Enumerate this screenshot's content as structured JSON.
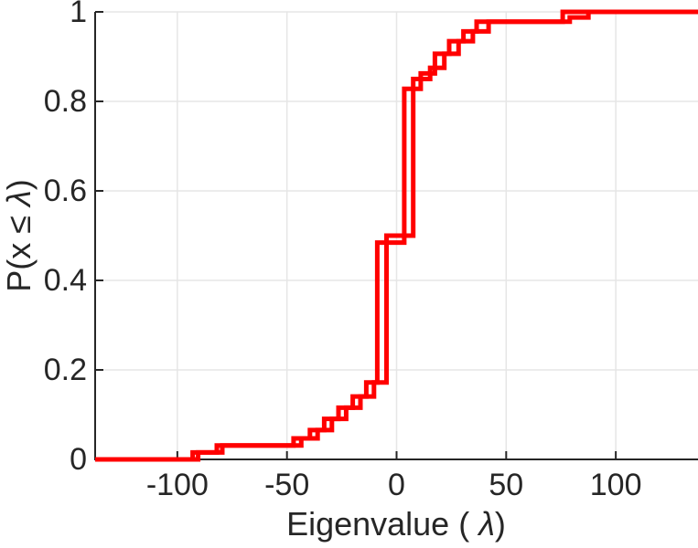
{
  "figure": {
    "background": "#ffffff"
  },
  "labels": {
    "xlabel": {
      "prefix": "Eigenvalue ( ",
      "lambda": "λ",
      "suffix": ")"
    },
    "ylabel": {
      "prefix": "P(x ≤ ",
      "lambda": "λ",
      "suffix": ")"
    }
  },
  "chart_data": {
    "type": "line",
    "subtype": "step-ecdf-stairs",
    "title": "",
    "xlabel": "Eigenvalue ( λ)",
    "ylabel": "P(x ≤ λ)",
    "xlim": [
      -137.5,
      137.5
    ],
    "ylim": [
      0,
      1
    ],
    "x_ticks": {
      "values": [
        -100,
        -50,
        0,
        50,
        100
      ],
      "labels": [
        "-100",
        "-50",
        "0",
        "50",
        "100"
      ]
    },
    "y_ticks": {
      "values": [
        0,
        0.2,
        0.4,
        0.6,
        0.8,
        1
      ],
      "labels": [
        "0",
        "0.2",
        "0.4",
        "0.6",
        "0.8",
        "1"
      ]
    },
    "grid": true,
    "legend": "none",
    "line_color": "#ff0000",
    "line_width": 5,
    "axis_color": "#262626",
    "grid_color": "#e6e6e6",
    "tick_length": 9,
    "series": [
      {
        "name": "eigenvalue-ecdf-1",
        "start_probability": 0,
        "jumps": [
          [
            -93,
            0.0156
          ],
          [
            -82,
            0.0313
          ],
          [
            -47,
            0.0469
          ],
          [
            -39.5,
            0.0656
          ],
          [
            -33,
            0.0906
          ],
          [
            -26.5,
            0.1156
          ],
          [
            -20,
            0.1406
          ],
          [
            -13.8,
            0.1719
          ],
          [
            -8.8,
            0.4844
          ],
          [
            3.5,
            0.8281
          ],
          [
            11,
            0.8625
          ],
          [
            17.5,
            0.9063
          ],
          [
            24,
            0.9344
          ],
          [
            30.5,
            0.9563
          ],
          [
            36.5,
            0.9781
          ],
          [
            75.8,
            1.0
          ]
        ]
      },
      {
        "name": "eigenvalue-ecdf-2",
        "start_probability": 0,
        "jumps": [
          [
            -90.5,
            0.0156
          ],
          [
            -79.5,
            0.0313
          ],
          [
            -43.5,
            0.0469
          ],
          [
            -36,
            0.0656
          ],
          [
            -29.5,
            0.0906
          ],
          [
            -23,
            0.1156
          ],
          [
            -16.5,
            0.1406
          ],
          [
            -10.3,
            0.1719
          ],
          [
            -4.6,
            0.5
          ],
          [
            7.6,
            0.85
          ],
          [
            15.3,
            0.875
          ],
          [
            21.8,
            0.9063
          ],
          [
            28.3,
            0.9344
          ],
          [
            34.8,
            0.9563
          ],
          [
            42,
            0.9781
          ],
          [
            79,
            0.9875
          ],
          [
            87.5,
            1.0
          ]
        ]
      }
    ]
  }
}
